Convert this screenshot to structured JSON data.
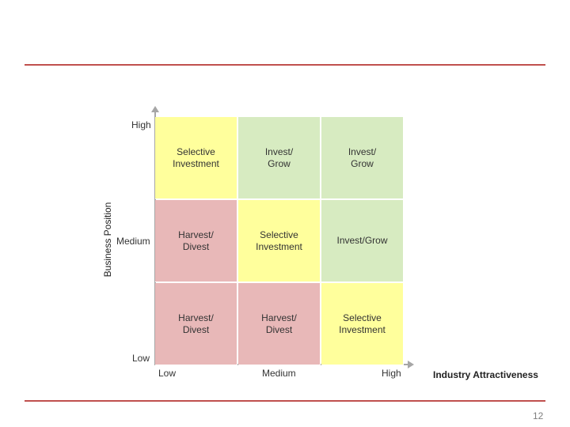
{
  "y_axis": {
    "title": "Business Position",
    "high": "High",
    "medium": "Medium",
    "low": "Low"
  },
  "x_axis": {
    "title": "Industry Attractiveness",
    "low": "Low",
    "medium": "Medium",
    "high": "High"
  },
  "matrix": {
    "rows": [
      [
        "Selective\nInvestment",
        "Invest/\nGrow",
        "Invest/\nGrow"
      ],
      [
        "Harvest/\nDivest",
        "Selective\nInvestment",
        "Invest/Grow"
      ],
      [
        "Harvest/\nDivest",
        "Harvest/\nDivest",
        "Selective\nInvestment"
      ]
    ]
  },
  "colors": {
    "selective": "#ffff9c",
    "invest": "#d7ebc1",
    "harvest": "#e8b8b8",
    "rule": "#c0504d"
  },
  "page_number": "12"
}
